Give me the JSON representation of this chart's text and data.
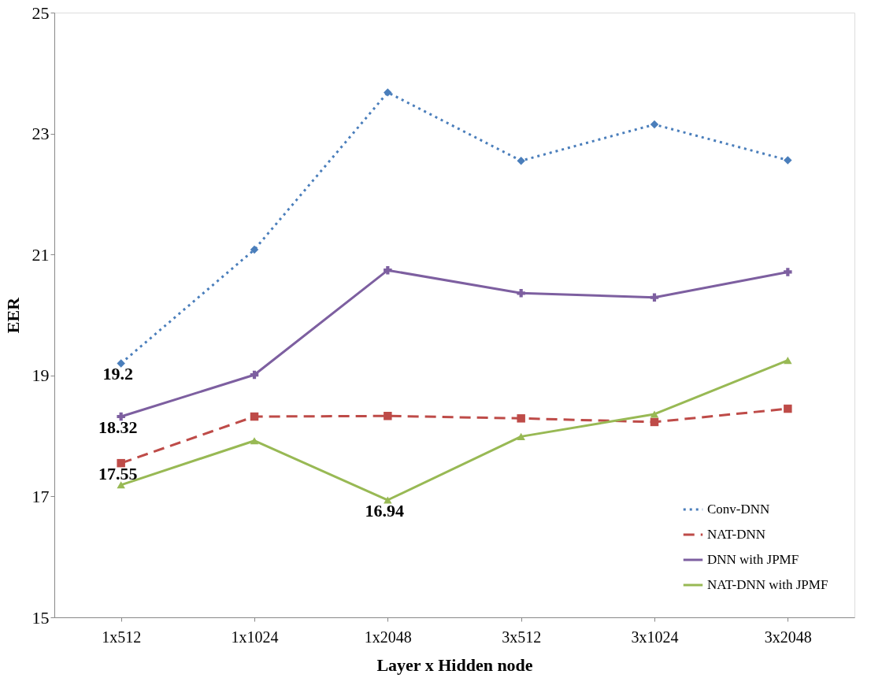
{
  "chart_data": {
    "type": "line",
    "xlabel": "Layer x Hidden node",
    "ylabel": "EER",
    "categories": [
      "1x512",
      "1x1024",
      "1x2048",
      "3x512",
      "3x1024",
      "3x2048"
    ],
    "ylim": [
      15,
      25
    ],
    "yticks": [
      15,
      17,
      19,
      21,
      23,
      25
    ],
    "grid": false,
    "legend": "bottom right",
    "series": [
      {
        "name": "Conv-DNN",
        "color": "#4a7ebb",
        "marker": "diamond",
        "line_style": "dotted",
        "values": [
          19.2,
          21.08,
          23.68,
          22.55,
          23.15,
          22.56
        ],
        "value_labels": [
          "19.2",
          null,
          null,
          null,
          null,
          null
        ]
      },
      {
        "name": "NAT-DNN",
        "color": "#be4b48",
        "marker": "square",
        "line_style": "dashed",
        "values": [
          17.55,
          18.32,
          18.33,
          18.29,
          18.23,
          18.45
        ],
        "value_labels": [
          "17.55",
          null,
          null,
          null,
          null,
          null
        ]
      },
      {
        "name": "DNN with JPMF",
        "color": "#7d5fa0",
        "marker": "cross",
        "line_style": "solid",
        "values": [
          18.32,
          19.01,
          20.74,
          20.36,
          20.29,
          20.71
        ],
        "value_labels": [
          "18.32",
          null,
          null,
          null,
          null,
          null
        ]
      },
      {
        "name": "NAT-DNN with JPMF",
        "color": "#98b954",
        "marker": "triangle",
        "line_style": "solid",
        "values": [
          17.19,
          17.92,
          16.94,
          17.99,
          18.36,
          19.25
        ],
        "value_labels": [
          null,
          null,
          "16.94",
          null,
          null,
          null
        ]
      }
    ]
  }
}
